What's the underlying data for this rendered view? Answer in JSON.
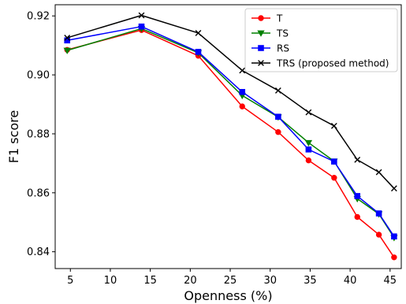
{
  "chart_data": {
    "type": "line",
    "title": "",
    "xlabel": "Openness (%)",
    "ylabel": "F1 score",
    "xlim": [
      3.1,
      46.4
    ],
    "ylim": [
      0.8343,
      0.9238
    ],
    "xticks": [
      5,
      10,
      15,
      20,
      25,
      30,
      35,
      40,
      45
    ],
    "xtick_labels": [
      "5",
      "10",
      "15",
      "20",
      "25",
      "30",
      "35",
      "40",
      "45"
    ],
    "yticks": [
      0.84,
      0.86,
      0.88,
      0.9,
      0.92
    ],
    "ytick_labels": [
      "0.84",
      "0.86",
      "0.88",
      "0.90",
      "0.92"
    ],
    "grid": false,
    "legend_position": "top-right",
    "x": [
      4.6,
      13.9,
      21.0,
      26.5,
      31.0,
      34.8,
      38.0,
      40.9,
      43.6,
      45.5
    ],
    "series": [
      {
        "name": "T",
        "color": "#ff0000",
        "marker": "circle",
        "values": [
          0.9085,
          0.9152,
          0.9065,
          0.8893,
          0.8806,
          0.871,
          0.8651,
          0.8518,
          0.8458,
          0.8381
        ]
      },
      {
        "name": "TS",
        "color": "#008000",
        "marker": "triangle-down",
        "values": [
          0.9083,
          0.9157,
          0.9075,
          0.893,
          0.8857,
          0.877,
          0.8707,
          0.858,
          0.8528,
          0.8448
        ]
      },
      {
        "name": "RS",
        "color": "#0000ff",
        "marker": "square",
        "values": [
          0.9117,
          0.9164,
          0.9078,
          0.8942,
          0.8858,
          0.8747,
          0.8706,
          0.8589,
          0.853,
          0.8452
        ]
      },
      {
        "name": "TRS (proposed method)",
        "color": "#000000",
        "marker": "x",
        "values": [
          0.9126,
          0.9202,
          0.9142,
          0.9015,
          0.8947,
          0.8873,
          0.8827,
          0.8712,
          0.867,
          0.8615
        ]
      }
    ]
  }
}
